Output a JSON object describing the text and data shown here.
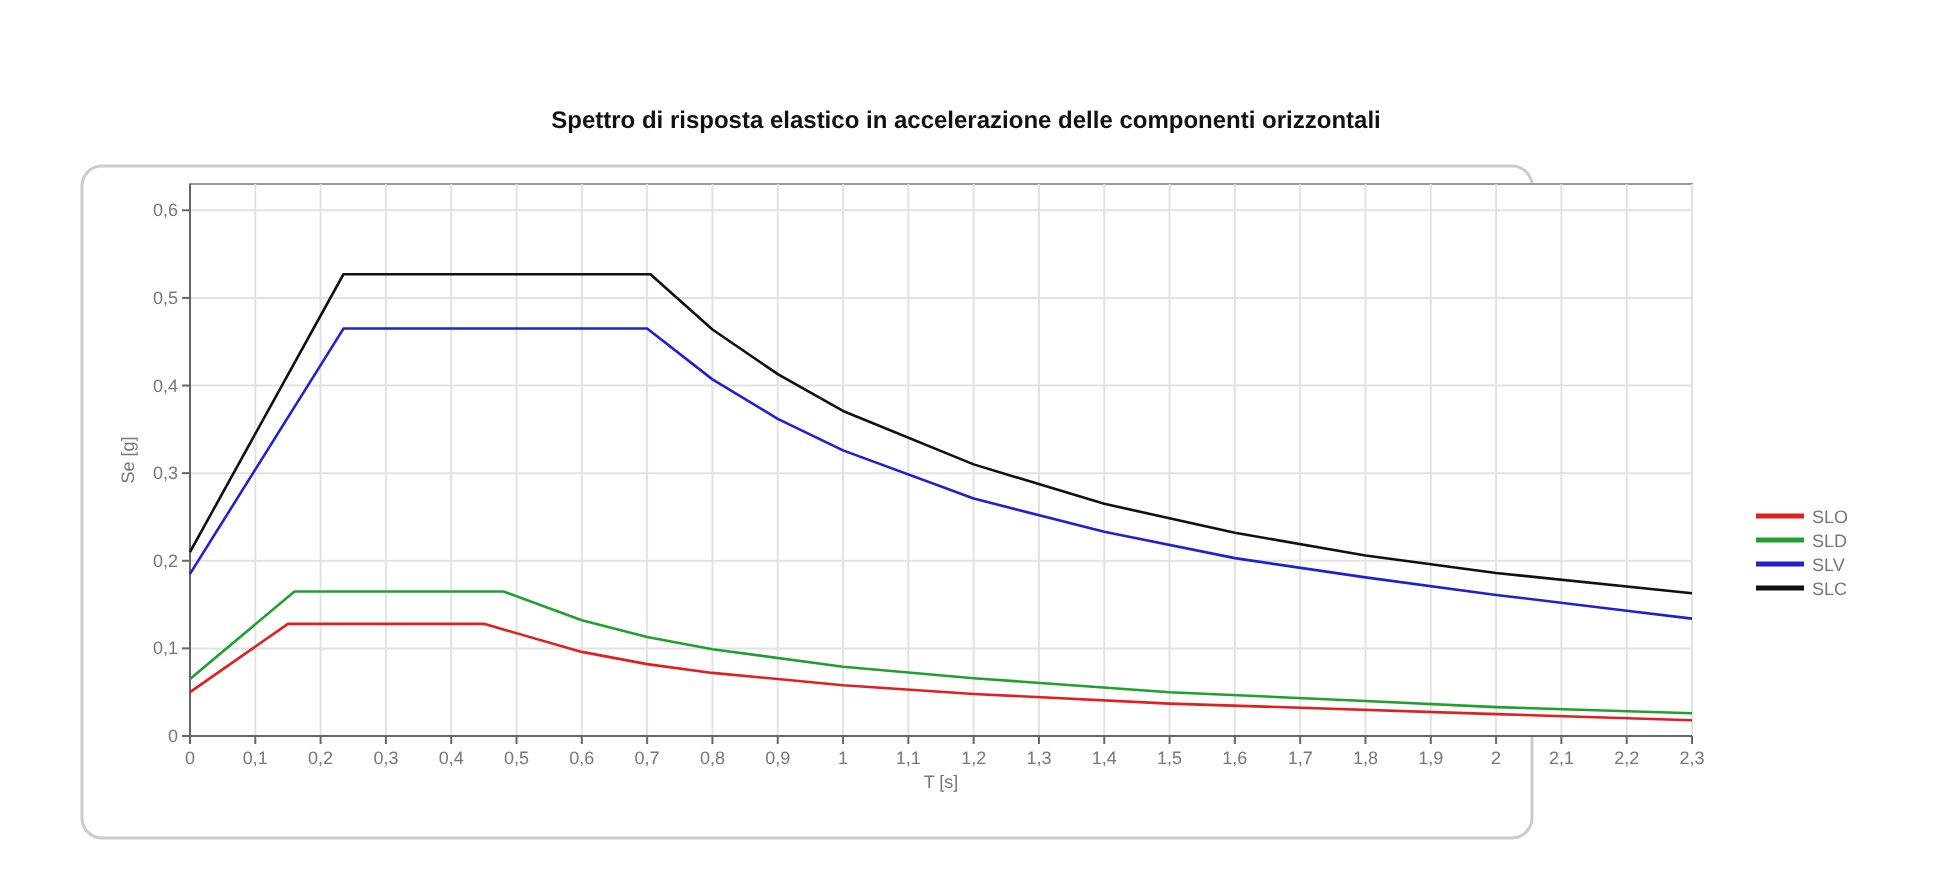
{
  "chart_data": {
    "type": "line",
    "title": "Spettro di risposta elastico in accelerazione delle componenti orizzontali",
    "xlabel": "T [s]",
    "ylabel": "Se [g]",
    "xlim": [
      0,
      2.3
    ],
    "ylim": [
      0,
      0.63
    ],
    "xticks": [
      0,
      {
        "value": 0.1,
        "label": "0,1"
      },
      {
        "value": 0.2,
        "label": "0,2"
      },
      {
        "value": 0.3,
        "label": "0,3"
      },
      {
        "value": 0.4,
        "label": "0,4"
      },
      {
        "value": 0.5,
        "label": "0,5"
      },
      {
        "value": 0.6,
        "label": "0,6"
      },
      {
        "value": 0.7,
        "label": "0,7"
      },
      {
        "value": 0.8,
        "label": "0,8"
      },
      {
        "value": 0.9,
        "label": "0,9"
      },
      1,
      {
        "value": 1.1,
        "label": "1,1"
      },
      {
        "value": 1.2,
        "label": "1,2"
      },
      {
        "value": 1.3,
        "label": "1,3"
      },
      {
        "value": 1.4,
        "label": "1,4"
      },
      {
        "value": 1.5,
        "label": "1,5"
      },
      {
        "value": 1.6,
        "label": "1,6"
      },
      {
        "value": 1.7,
        "label": "1,7"
      },
      {
        "value": 1.8,
        "label": "1,8"
      },
      {
        "value": 1.9,
        "label": "1,9"
      },
      2,
      {
        "value": 2.1,
        "label": "2,1"
      },
      {
        "value": 2.2,
        "label": "2,2"
      },
      {
        "value": 2.3,
        "label": "2,3"
      }
    ],
    "yticks": [
      0,
      {
        "value": 0.1,
        "label": "0,1"
      },
      {
        "value": 0.2,
        "label": "0,2"
      },
      {
        "value": 0.3,
        "label": "0,3"
      },
      {
        "value": 0.4,
        "label": "0,4"
      },
      {
        "value": 0.5,
        "label": "0,5"
      },
      {
        "value": 0.6,
        "label": "0,6"
      }
    ],
    "grid": true,
    "legend": "right",
    "marker": "none",
    "line_style": "solid",
    "series": [
      {
        "name": "SLO",
        "color": "#e02020",
        "x": [
          0,
          0.15,
          0.45,
          0.6,
          0.7,
          0.8,
          1.0,
          1.2,
          1.5,
          2.0,
          2.3
        ],
        "values": [
          0.05,
          0.128,
          0.128,
          0.096,
          0.082,
          0.072,
          0.058,
          0.048,
          0.037,
          0.025,
          0.018
        ]
      },
      {
        "name": "SLD",
        "color": "#20a030",
        "x": [
          0,
          0.16,
          0.48,
          0.6,
          0.7,
          0.8,
          1.0,
          1.2,
          1.5,
          1.8,
          2.0,
          2.3
        ],
        "values": [
          0.065,
          0.165,
          0.165,
          0.132,
          0.113,
          0.099,
          0.079,
          0.066,
          0.05,
          0.04,
          0.033,
          0.026
        ]
      },
      {
        "name": "SLV",
        "color": "#2020d0",
        "x": [
          0,
          0.235,
          0.7,
          0.8,
          0.9,
          1.0,
          1.2,
          1.4,
          1.6,
          1.8,
          2.0,
          2.2,
          2.3
        ],
        "values": [
          0.185,
          0.465,
          0.465,
          0.407,
          0.362,
          0.326,
          0.271,
          0.233,
          0.203,
          0.181,
          0.161,
          0.143,
          0.134
        ]
      },
      {
        "name": "SLC",
        "color": "#101010",
        "x": [
          0,
          0.235,
          0.705,
          0.8,
          0.9,
          1.0,
          1.2,
          1.4,
          1.6,
          1.8,
          2.0,
          2.3
        ],
        "values": [
          0.21,
          0.527,
          0.527,
          0.464,
          0.413,
          0.371,
          0.31,
          0.265,
          0.232,
          0.206,
          0.186,
          0.163
        ]
      }
    ]
  }
}
